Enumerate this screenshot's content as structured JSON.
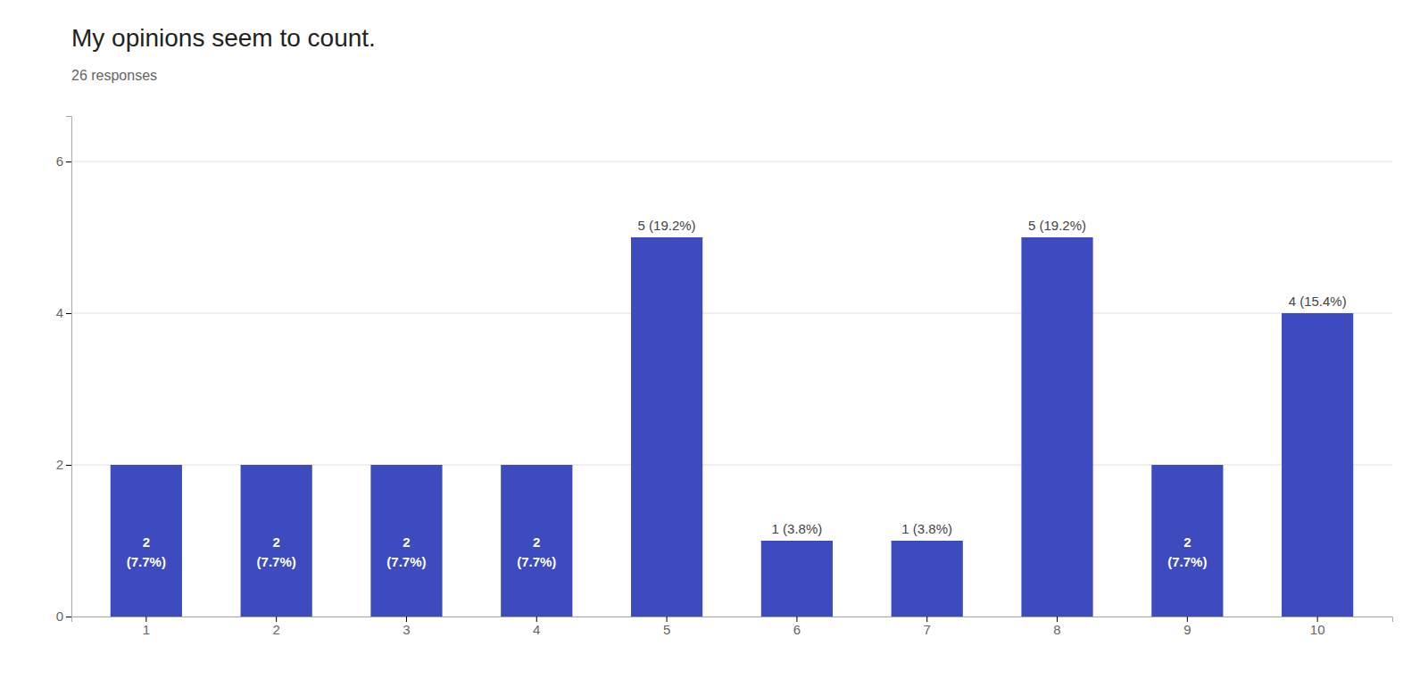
{
  "chart_data": {
    "type": "bar",
    "title": "My opinions seem to count.",
    "subtitle": "26 responses",
    "categories": [
      1,
      2,
      3,
      4,
      5,
      6,
      7,
      8,
      9,
      10
    ],
    "values": [
      2,
      2,
      2,
      2,
      5,
      1,
      1,
      5,
      2,
      4
    ],
    "value_labels": [
      "2\n(7.7%)",
      "2\n(7.7%)",
      "2\n(7.7%)",
      "2\n(7.7%)",
      "5 (19.2%)",
      "1 (3.8%)",
      "1 (3.8%)",
      "5 (19.2%)",
      "2\n(7.7%)",
      "4 (15.4%)"
    ],
    "data_labels": true,
    "color": "#3d4bbf",
    "ylim": [
      0,
      6.6
    ],
    "yticks": [
      0,
      2,
      4,
      6
    ],
    "grid": true
  }
}
